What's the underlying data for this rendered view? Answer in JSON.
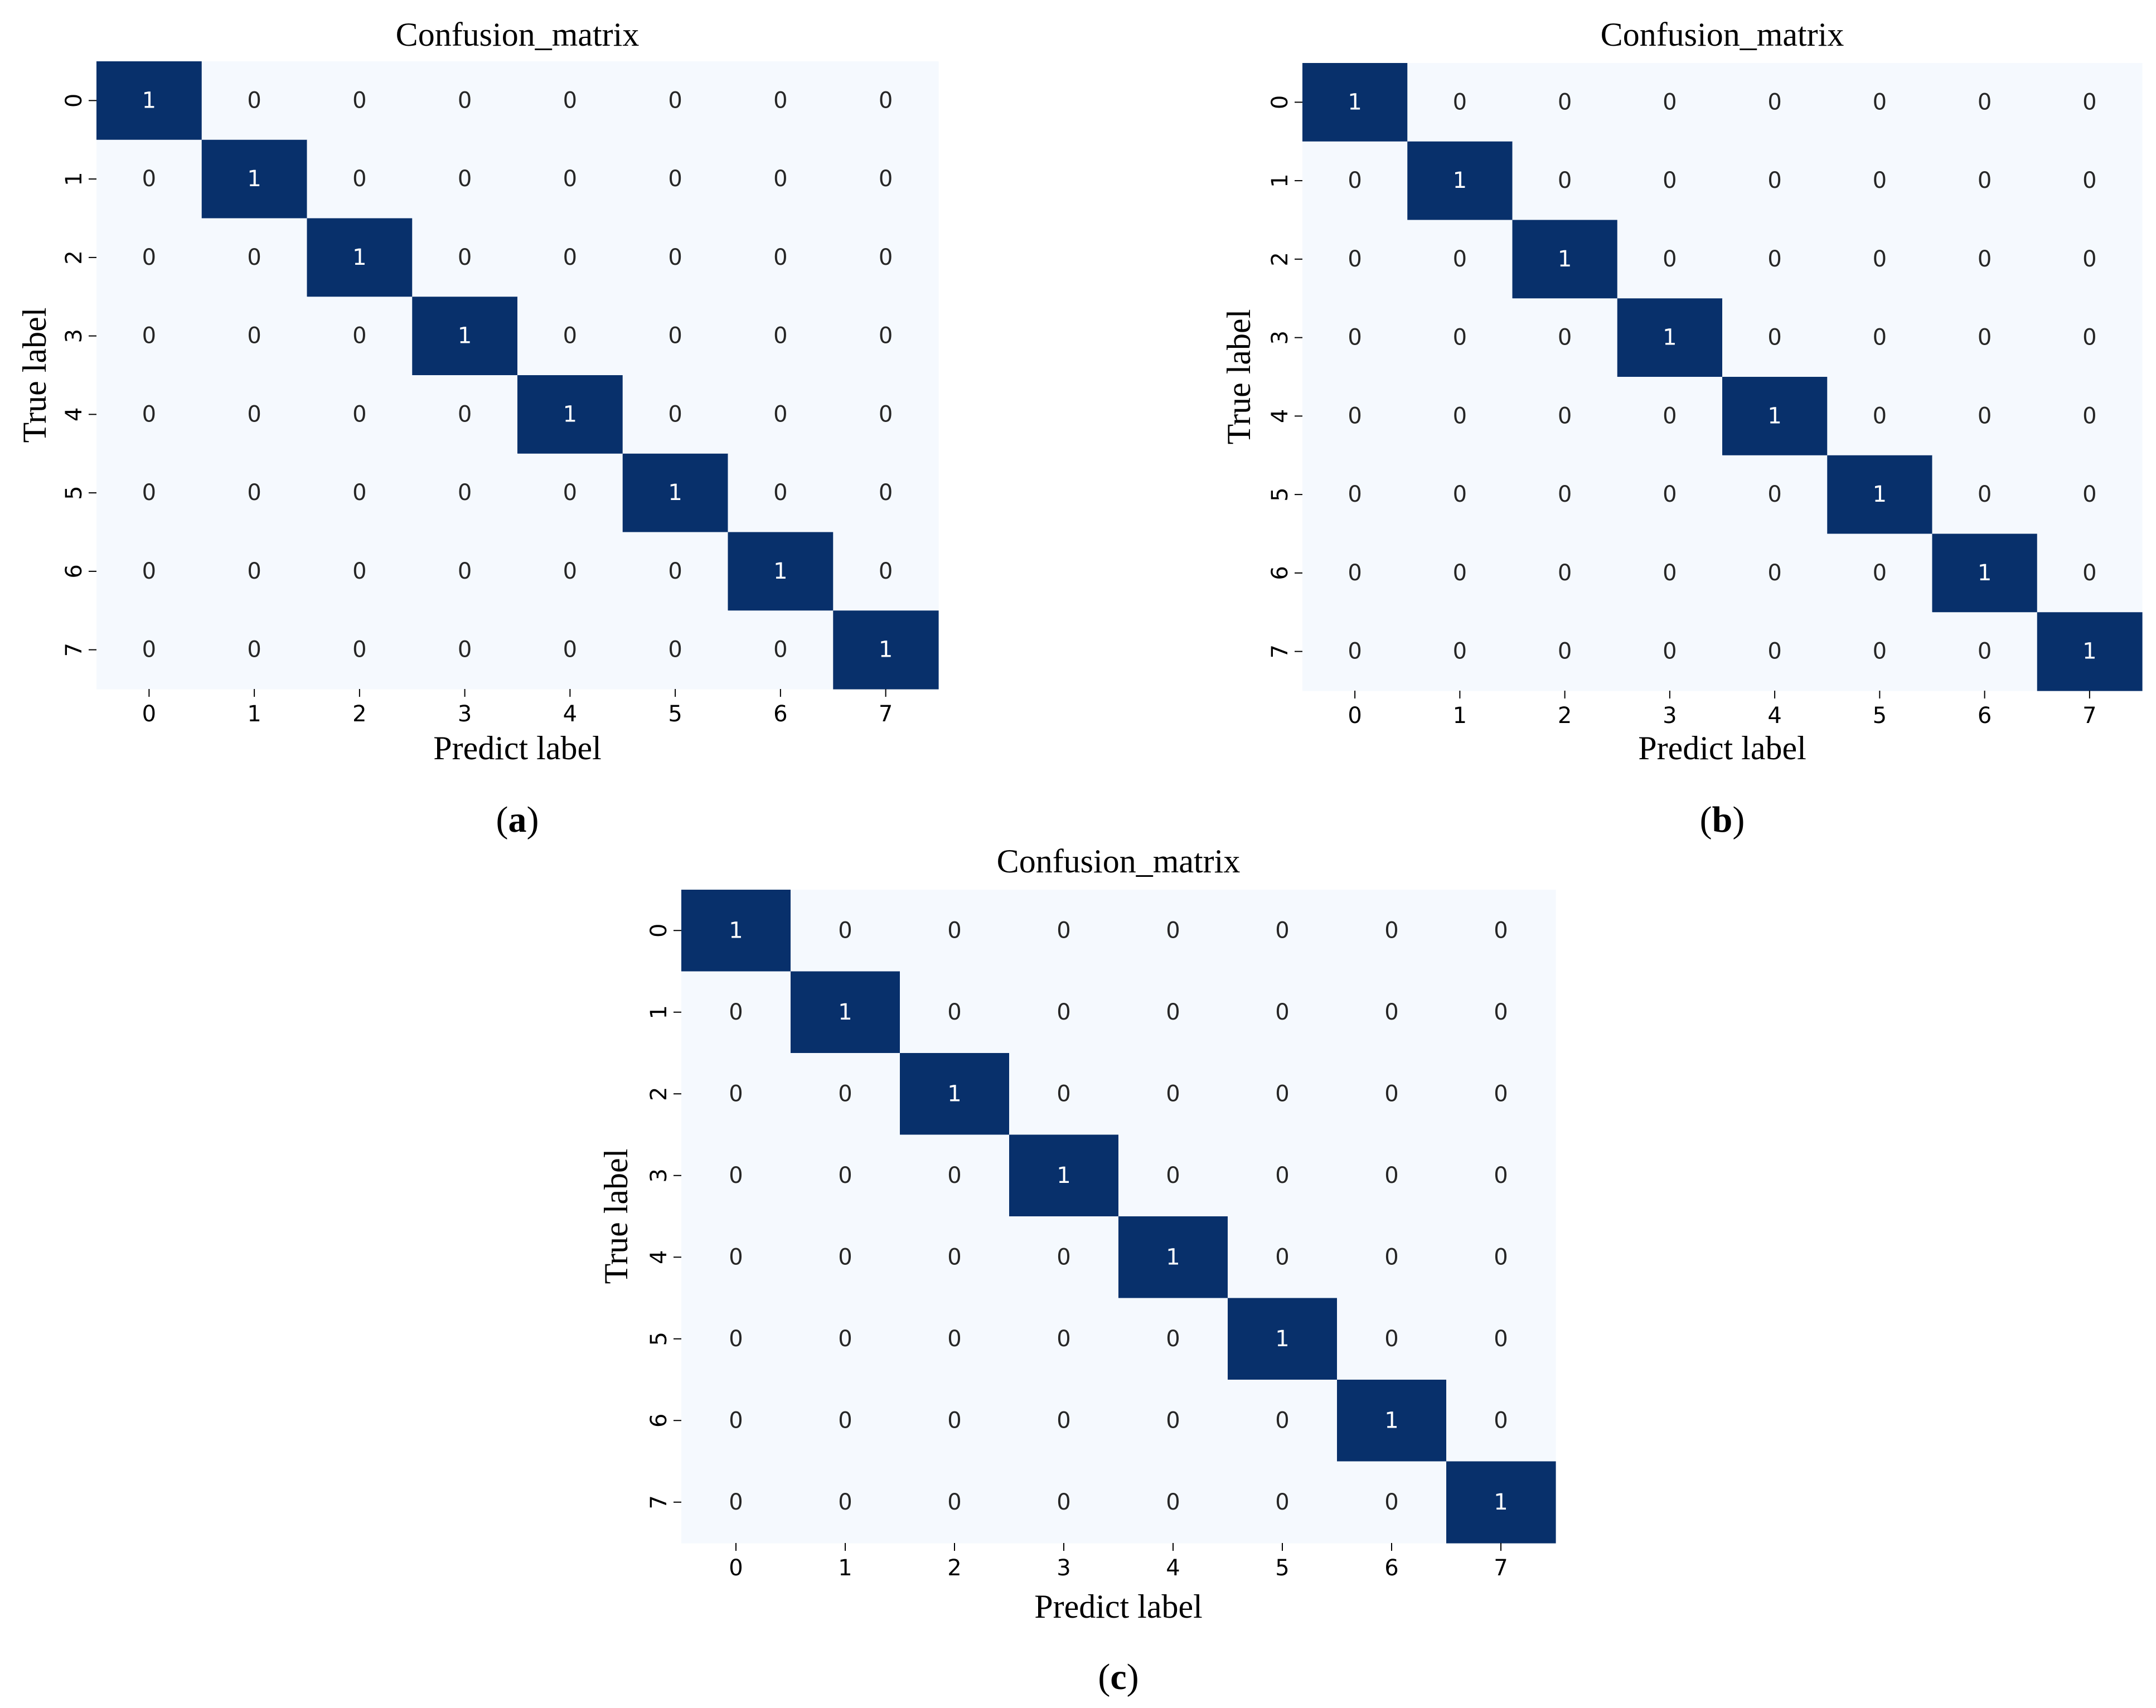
{
  "chart_data": [
    {
      "type": "heatmap",
      "panel_label": "a",
      "title": "Confusion_matrix",
      "xlabel": "Predict label",
      "ylabel": "True label",
      "x_categories": [
        "0",
        "1",
        "2",
        "3",
        "4",
        "5",
        "6",
        "7"
      ],
      "y_categories": [
        "0",
        "1",
        "2",
        "3",
        "4",
        "5",
        "6",
        "7"
      ],
      "values": [
        [
          1,
          0,
          0,
          0,
          0,
          0,
          0,
          0
        ],
        [
          0,
          1,
          0,
          0,
          0,
          0,
          0,
          0
        ],
        [
          0,
          0,
          1,
          0,
          0,
          0,
          0,
          0
        ],
        [
          0,
          0,
          0,
          1,
          0,
          0,
          0,
          0
        ],
        [
          0,
          0,
          0,
          0,
          1,
          0,
          0,
          0
        ],
        [
          0,
          0,
          0,
          0,
          0,
          1,
          0,
          0
        ],
        [
          0,
          0,
          0,
          0,
          0,
          0,
          1,
          0
        ],
        [
          0,
          0,
          0,
          0,
          0,
          0,
          0,
          1
        ]
      ],
      "vmin": 0,
      "vmax": 1,
      "colormap": "Blues",
      "low_color": "#f5f9fe",
      "high_color": "#08306b",
      "colorbar": false
    },
    {
      "type": "heatmap",
      "panel_label": "b",
      "title": "Confusion_matrix",
      "xlabel": "Predict label",
      "ylabel": "True label",
      "x_categories": [
        "0",
        "1",
        "2",
        "3",
        "4",
        "5",
        "6",
        "7"
      ],
      "y_categories": [
        "0",
        "1",
        "2",
        "3",
        "4",
        "5",
        "6",
        "7"
      ],
      "values": [
        [
          1,
          0,
          0,
          0,
          0,
          0,
          0,
          0
        ],
        [
          0,
          1,
          0,
          0,
          0,
          0,
          0,
          0
        ],
        [
          0,
          0,
          1,
          0,
          0,
          0,
          0,
          0
        ],
        [
          0,
          0,
          0,
          1,
          0,
          0,
          0,
          0
        ],
        [
          0,
          0,
          0,
          0,
          1,
          0,
          0,
          0
        ],
        [
          0,
          0,
          0,
          0,
          0,
          1,
          0,
          0
        ],
        [
          0,
          0,
          0,
          0,
          0,
          0,
          1,
          0
        ],
        [
          0,
          0,
          0,
          0,
          0,
          0,
          0,
          1
        ]
      ],
      "vmin": 0,
      "vmax": 1,
      "colormap": "Blues",
      "low_color": "#f5f9fe",
      "high_color": "#08306b",
      "colorbar": false
    },
    {
      "type": "heatmap",
      "panel_label": "c",
      "title": "Confusion_matrix",
      "xlabel": "Predict label",
      "ylabel": "True label",
      "x_categories": [
        "0",
        "1",
        "2",
        "3",
        "4",
        "5",
        "6",
        "7"
      ],
      "y_categories": [
        "0",
        "1",
        "2",
        "3",
        "4",
        "5",
        "6",
        "7"
      ],
      "values": [
        [
          1,
          0,
          0,
          0,
          0,
          0,
          0,
          0
        ],
        [
          0,
          1,
          0,
          0,
          0,
          0,
          0,
          0
        ],
        [
          0,
          0,
          1,
          0,
          0,
          0,
          0,
          0
        ],
        [
          0,
          0,
          0,
          1,
          0,
          0,
          0,
          0
        ],
        [
          0,
          0,
          0,
          0,
          1,
          0,
          0,
          0
        ],
        [
          0,
          0,
          0,
          0,
          0,
          1,
          0,
          0
        ],
        [
          0,
          0,
          0,
          0,
          0,
          0,
          1,
          0
        ],
        [
          0,
          0,
          0,
          0,
          0,
          0,
          0,
          1
        ]
      ],
      "vmin": 0,
      "vmax": 1,
      "colormap": "Blues",
      "low_color": "#f5f9fe",
      "high_color": "#08306b",
      "colorbar": false
    }
  ]
}
